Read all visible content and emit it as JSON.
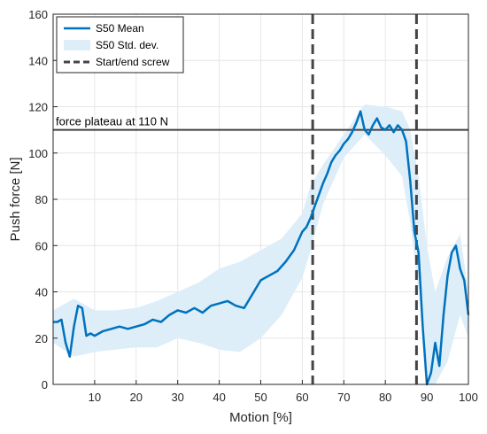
{
  "chart_data": {
    "type": "line",
    "title": "",
    "xlabel": "Motion [%]",
    "ylabel": "Push force [N]",
    "xlim": [
      0,
      100
    ],
    "ylim": [
      0,
      160
    ],
    "xticks": [
      10,
      20,
      30,
      40,
      50,
      60,
      70,
      80,
      90,
      100
    ],
    "yticks": [
      0,
      20,
      40,
      60,
      80,
      100,
      120,
      140,
      160
    ],
    "grid": true,
    "legend_position": "top-left",
    "colors": {
      "mean": "#0072BD",
      "band": "#DDEEF9",
      "dashed": "#444444",
      "plateau": "#404040"
    },
    "series": [
      {
        "name": "S50 Mean",
        "kind": "line",
        "x": [
          0,
          1,
          2,
          3,
          4,
          5,
          6,
          7,
          8,
          9,
          10,
          12,
          14,
          16,
          18,
          20,
          22,
          24,
          26,
          28,
          30,
          32,
          34,
          36,
          38,
          40,
          42,
          44,
          46,
          48,
          50,
          52,
          54,
          56,
          58,
          60,
          61,
          62,
          63,
          64,
          65,
          66,
          67,
          68,
          69,
          70,
          71,
          72,
          73,
          74,
          75,
          76,
          77,
          78,
          79,
          80,
          81,
          82,
          83,
          84,
          85,
          86,
          87,
          88,
          89,
          90,
          91,
          92,
          93,
          94,
          95,
          96,
          97,
          98,
          99,
          100
        ],
        "y": [
          27,
          27,
          28,
          18,
          12,
          25,
          34,
          33,
          21,
          22,
          21,
          23,
          24,
          25,
          24,
          25,
          26,
          28,
          27,
          30,
          32,
          31,
          33,
          31,
          34,
          35,
          36,
          34,
          33,
          39,
          45,
          47,
          49,
          53,
          58,
          66,
          68,
          72,
          77,
          82,
          87,
          91,
          96,
          99,
          101,
          104,
          106,
          109,
          113,
          118,
          110,
          108,
          112,
          115,
          111,
          110,
          112,
          109,
          112,
          110,
          105,
          88,
          66,
          57,
          25,
          0,
          5,
          18,
          8,
          30,
          47,
          57,
          60,
          50,
          45,
          30
        ]
      },
      {
        "name": "S50 Std. dev.",
        "kind": "band",
        "x": [
          0,
          5,
          10,
          15,
          20,
          25,
          30,
          35,
          40,
          45,
          50,
          55,
          60,
          62,
          65,
          70,
          75,
          80,
          84,
          86,
          88,
          90,
          92,
          95,
          98,
          100
        ],
        "upper": [
          32,
          37,
          32,
          32,
          33,
          36,
          40,
          44,
          50,
          53,
          58,
          63,
          74,
          86,
          95,
          108,
          121,
          120,
          118,
          110,
          90,
          60,
          40,
          55,
          65,
          40
        ],
        "lower": [
          18,
          12,
          14,
          15,
          16,
          16,
          20,
          18,
          15,
          14,
          20,
          30,
          46,
          58,
          78,
          98,
          108,
          99,
          90,
          70,
          40,
          0,
          0,
          10,
          30,
          20
        ]
      },
      {
        "name": "Start/end screw",
        "kind": "vlines",
        "x": [
          62.5,
          87.5
        ]
      }
    ],
    "annotations": [
      {
        "text": "force plateau at 110 N",
        "y": 110,
        "kind": "hline"
      }
    ]
  }
}
